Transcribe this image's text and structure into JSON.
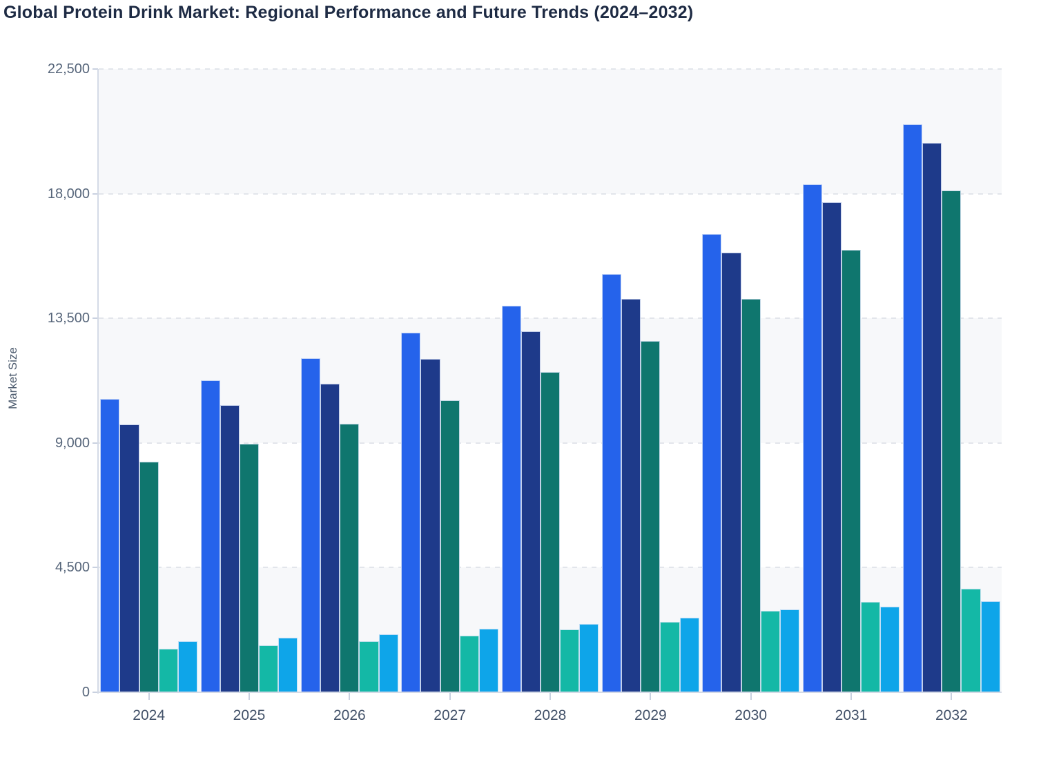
{
  "chart": {
    "title": "Global Protein Drink Market: Regional Performance and Future Trends (2024–2032)"
  },
  "chart_data": {
    "type": "bar",
    "title": "Global Protein Drink Market: Regional Performance and Future Trends (2024–2032)",
    "xlabel": "",
    "ylabel": "Market Size",
    "categories": [
      "2024",
      "2025",
      "2026",
      "2027",
      "2028",
      "2029",
      "2030",
      "2031",
      "2032"
    ],
    "series": [
      {
        "name": "series-royal-blue",
        "color": "#2563eb",
        "values": [
          10580,
          11270,
          12060,
          12970,
          13960,
          15090,
          16540,
          18350,
          20500
        ]
      },
      {
        "name": "series-navy",
        "color": "#1e3a8a",
        "values": [
          9670,
          10360,
          11140,
          12040,
          13040,
          14210,
          15860,
          17680,
          19840
        ]
      },
      {
        "name": "series-dark-teal",
        "color": "#0f766e",
        "values": [
          8320,
          8970,
          9690,
          10550,
          11550,
          12690,
          14210,
          15980,
          18110
        ]
      },
      {
        "name": "series-turquoise",
        "color": "#14b8a6",
        "values": [
          1560,
          1690,
          1840,
          2040,
          2270,
          2540,
          2930,
          3270,
          3750
        ]
      },
      {
        "name": "series-sky-blue",
        "color": "#0ea5e9",
        "values": [
          1840,
          1970,
          2100,
          2280,
          2460,
          2680,
          2980,
          3090,
          3300
        ]
      }
    ],
    "ylim": [
      0,
      22500
    ],
    "yticks": [
      0,
      4500,
      9000,
      13500,
      18000,
      22500
    ],
    "ytick_labels": [
      "0",
      "4,500",
      "9,000",
      "13,500",
      "18,000",
      "22,500"
    ],
    "shaded_bands": [
      [
        18000,
        22500
      ],
      [
        9000,
        13500
      ],
      [
        0,
        4500
      ]
    ],
    "grid": "dashed-horizontal",
    "legend": "none"
  }
}
